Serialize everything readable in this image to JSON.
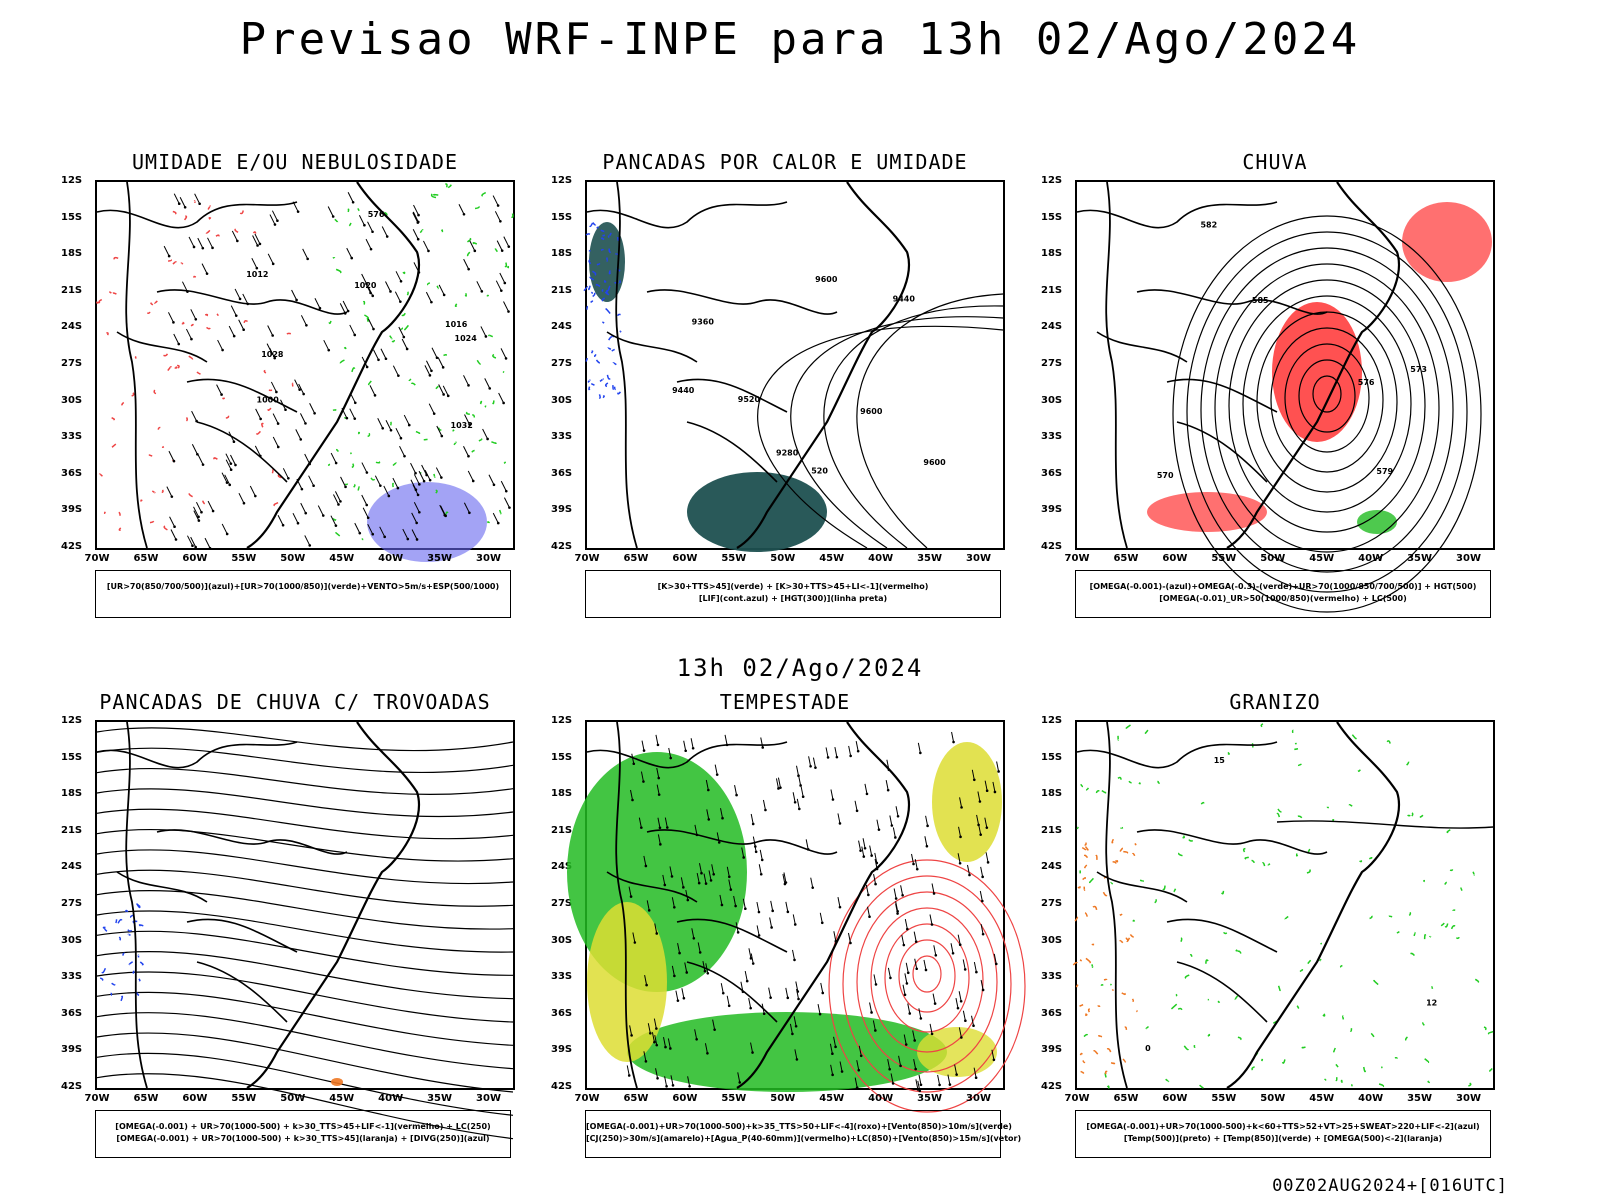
{
  "title": "Previsao WRF-INPE  para 13h 02/Ago/2024",
  "mid_time": "13h 02/Ago/2024",
  "footer": "00Z02AUG2024+[016UTC]",
  "lat_labels": [
    "12S",
    "15S",
    "18S",
    "21S",
    "24S",
    "27S",
    "30S",
    "33S",
    "36S",
    "39S",
    "42S"
  ],
  "lon_labels": [
    "70W",
    "65W",
    "60W",
    "55W",
    "50W",
    "45W",
    "40W",
    "35W",
    "30W"
  ],
  "panels": [
    {
      "title": "UMIDADE E/OU NEBULOSIDADE",
      "legend": [
        "[UR>70(850/700/500)](azul)+[UR>70(1000/850)](verde)+VENTO>5m/s+ESP(500/1000)"
      ],
      "contour_labels": [
        "1012",
        "1016",
        "1020",
        "1024",
        "1028",
        "1032",
        "1000",
        "576"
      ]
    },
    {
      "title": "PANCADAS POR CALOR E UMIDADE",
      "legend": [
        "[K>30+TTS>45](verde) + [K>30+TTS>45+LI<-1](vermelho)",
        "[LIF](cont.azul) + [HGT(300)](linha preta)"
      ],
      "contour_labels": [
        "9600",
        "9600",
        "9520",
        "9440",
        "9360",
        "9280",
        "9440",
        "9600",
        "520"
      ]
    },
    {
      "title": "CHUVA",
      "legend": [
        "[OMEGA(-0.001)-(azul)+OMEGA(-0.3)-(verde)+UR>70(1000/850/700/500)] + HGT(500)",
        "[OMEGA(-0.01)_UR>50(1000/850)(vermelho) + LC(500)"
      ],
      "contour_labels": [
        "576",
        "573",
        "570",
        "582",
        "585",
        "579"
      ]
    },
    {
      "title": "PANCADAS DE CHUVA C/ TROVOADAS",
      "legend": [
        "[OMEGA(-0.001) + UR>70(1000-500) + k>30_TTS>45+LIF<-1](vermelho) + LC(250)",
        "[OMEGA(-0.001) + UR>70(1000-500) + k>30_TTS>45](laranja) + [DIVG(250)](azul)"
      ],
      "contour_labels": []
    },
    {
      "title": "TEMPESTADE",
      "legend": [
        "[OMEGA(-0.001)+UR>70(1000-500)+k>35_TTS>50+LIF<-4](roxo)+[Vento(850)>10m/s](verde)",
        "[CJ(250)>30m/s](amarelo)+[Agua_P(40-60mm)](vermelho)+LC(850)+[Vento(850)>15m/s](vetor)"
      ],
      "contour_labels": []
    },
    {
      "title": "GRANIZO",
      "legend": [
        "[OMEGA(-0.001)+UR>70(1000-500)+k<60+TTS>52+VT>25+SWEAT>220+LIF<-2](azul)",
        "[Temp(500)](preto) + [Temp(850)](verde) + [OMEGA(500)<-2](laranja)"
      ],
      "contour_labels": [
        "0",
        "12",
        "15"
      ]
    }
  ],
  "colors": {
    "humidity_high": "#6666ee",
    "humidity_low": "#22cc22",
    "storm_green": "#22bb22",
    "jet_yellow": "#dddd33",
    "rain_red": "#ff3333",
    "teal": "#1e5050",
    "blue_line": "#2244ee",
    "orange": "#ee7722",
    "red_line": "#ee4444"
  }
}
